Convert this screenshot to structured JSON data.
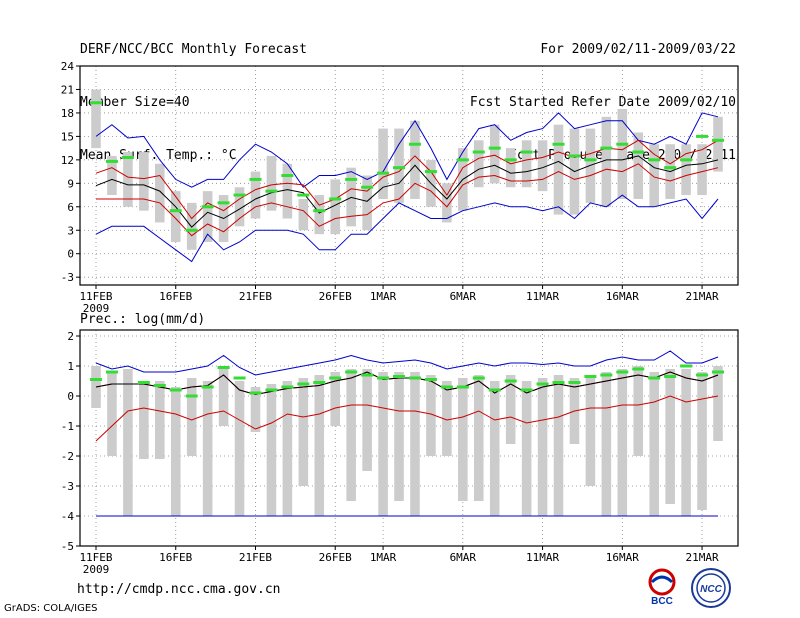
{
  "header": {
    "title": "DERF/NCC/BCC Monthly Forecast",
    "member_size": "Member Size=40",
    "variable": "Mean Surf. Temp.: °C",
    "forecast_period": "For 2009/02/11-2009/03/22",
    "started_refer": "Fcst Started Refer Date 2009/02/10",
    "produced": "Fcst Produced Date 2009/02/11"
  },
  "footer": {
    "url": "http://cmdp.ncc.cma.gov.cn",
    "credit": "GrADS: COLA/IGES",
    "logo_bcc": "BCC",
    "logo_ncc": "NCC"
  },
  "colors": {
    "ensemble_mean": "#000000",
    "spread": "#cc0000",
    "envelope": "#0000cc",
    "observation": "#33dd33",
    "box": "#cccccc",
    "grid": "#888888"
  },
  "chart_data": [
    {
      "type": "line",
      "title": "Mean Surf. Temp.: °C",
      "x_tick_labels": [
        "11FEB",
        "16FEB",
        "21FEB",
        "26FEB",
        "1MAR",
        "6MAR",
        "11MAR",
        "16MAR",
        "21MAR"
      ],
      "x_tick_days": [
        0,
        5,
        10,
        15,
        18,
        23,
        28,
        33,
        38
      ],
      "year_label": "2009",
      "ylim": [
        -4,
        24
      ],
      "yticks": [
        -3,
        0,
        3,
        6,
        9,
        12,
        15,
        18,
        21,
        24
      ],
      "days": 40,
      "series": [
        {
          "name": "ensemble mean",
          "color": "#000000",
          "values": [
            8.7,
            9.5,
            8.8,
            8.8,
            8.0,
            6.0,
            3.4,
            5.3,
            4.5,
            5.7,
            7.0,
            7.8,
            8.2,
            7.8,
            5.2,
            6.2,
            7.2,
            6.7,
            8.5,
            9.0,
            11.3,
            9.0,
            7.0,
            9.5,
            10.8,
            11.3,
            10.3,
            10.5,
            11.0,
            11.8,
            10.5,
            11.3,
            12.0,
            12.0,
            12.5,
            11.0,
            10.5,
            11.3,
            11.5,
            12.0
          ]
        },
        {
          "name": "upper spread",
          "color": "#cc0000",
          "values": [
            10.3,
            11.0,
            9.8,
            9.6,
            10.0,
            7.3,
            4.5,
            6.5,
            5.5,
            7.0,
            8.2,
            8.8,
            9.0,
            8.8,
            6.2,
            7.0,
            8.3,
            8.0,
            9.8,
            10.5,
            12.5,
            10.5,
            7.5,
            11.0,
            12.2,
            12.6,
            11.5,
            12.0,
            12.3,
            13.0,
            12.3,
            12.8,
            13.5,
            13.3,
            14.5,
            12.7,
            11.5,
            12.8,
            13.3,
            14.5
          ]
        },
        {
          "name": "lower spread",
          "color": "#cc0000",
          "values": [
            7.0,
            7.0,
            7.0,
            7.0,
            6.5,
            4.5,
            2.3,
            3.8,
            2.8,
            4.5,
            6.0,
            6.5,
            6.0,
            5.5,
            3.5,
            4.5,
            4.8,
            5.0,
            6.5,
            7.0,
            9.0,
            8.0,
            6.0,
            8.8,
            9.8,
            10.0,
            9.3,
            9.3,
            9.5,
            10.5,
            9.5,
            10.0,
            10.8,
            10.5,
            11.5,
            9.8,
            9.3,
            10.0,
            10.5,
            11.0
          ]
        },
        {
          "name": "ensemble max",
          "color": "#0000cc",
          "values": [
            15.0,
            16.5,
            14.8,
            15.0,
            12.0,
            9.5,
            8.5,
            9.5,
            9.5,
            12.0,
            14.0,
            13.0,
            11.5,
            8.5,
            10.0,
            10.0,
            10.5,
            9.5,
            10.5,
            14.0,
            17.0,
            13.5,
            9.5,
            13.0,
            16.0,
            16.5,
            14.5,
            15.5,
            16.0,
            18.0,
            16.0,
            16.5,
            17.0,
            17.0,
            14.5,
            14.0,
            15.0,
            14.0,
            18.0,
            17.5
          ]
        },
        {
          "name": "ensemble min",
          "color": "#0000cc",
          "values": [
            2.5,
            3.5,
            3.5,
            3.5,
            2.0,
            0.5,
            -1.0,
            2.5,
            0.5,
            1.5,
            3.0,
            3.0,
            3.0,
            2.5,
            0.5,
            0.5,
            2.5,
            2.5,
            4.5,
            6.5,
            5.5,
            4.5,
            4.5,
            5.5,
            6.0,
            6.5,
            6.0,
            6.0,
            5.5,
            6.0,
            4.5,
            6.5,
            6.0,
            7.5,
            6.0,
            6.0,
            6.5,
            7.0,
            4.5,
            7.0
          ]
        },
        {
          "name": "observation",
          "color": "#33dd33",
          "style": "dash",
          "values": [
            19.3,
            11.8,
            12.3,
            null,
            null,
            5.5,
            3.0,
            6.0,
            6.5,
            7.5,
            9.5,
            8.0,
            10.0,
            7.5,
            5.5,
            7.0,
            9.5,
            8.5,
            10.3,
            11.0,
            14.0,
            10.5,
            null,
            12.0,
            13.0,
            13.5,
            12.0,
            13.0,
            null,
            14.0,
            12.5,
            12.0,
            13.5,
            14.0,
            13.0,
            12.0,
            11.0,
            12.0,
            15.0,
            14.5
          ]
        },
        {
          "name": "box upper",
          "color": "#cccccc",
          "values": [
            21.0,
            12.5,
            13.0,
            13.0,
            11.5,
            8.0,
            6.5,
            8.0,
            7.5,
            8.5,
            10.5,
            12.5,
            11.5,
            7.0,
            7.5,
            9.5,
            11.0,
            10.0,
            16.0,
            16.0,
            17.0,
            12.0,
            9.0,
            13.5,
            14.5,
            16.5,
            13.5,
            14.5,
            14.5,
            16.5,
            16.0,
            16.0,
            17.5,
            18.5,
            15.5,
            14.0,
            14.0,
            14.0,
            14.0,
            17.5
          ]
        },
        {
          "name": "box lower",
          "color": "#cccccc",
          "values": [
            13.5,
            7.5,
            6.0,
            5.5,
            4.0,
            1.5,
            0.5,
            1.5,
            1.5,
            3.5,
            4.5,
            5.5,
            4.5,
            3.0,
            2.5,
            2.5,
            3.5,
            3.0,
            7.0,
            6.5,
            7.0,
            6.0,
            4.0,
            5.5,
            8.5,
            9.0,
            8.5,
            8.5,
            8.0,
            5.0,
            5.0,
            6.5,
            6.0,
            7.0,
            7.0,
            6.0,
            7.0,
            7.5,
            7.5,
            10.5
          ]
        }
      ]
    },
    {
      "type": "line",
      "title": "Prec.: log(mm/d)",
      "x_tick_labels": [
        "11FEB",
        "16FEB",
        "21FEB",
        "26FEB",
        "1MAR",
        "6MAR",
        "11MAR",
        "16MAR",
        "21MAR"
      ],
      "x_tick_days": [
        0,
        5,
        10,
        15,
        18,
        23,
        28,
        33,
        38
      ],
      "year_label": "2009",
      "ylim": [
        -5,
        2.2
      ],
      "yticks": [
        -5,
        -4,
        -3,
        -2,
        -1,
        0,
        1,
        2
      ],
      "days": 40,
      "series": [
        {
          "name": "ensemble mean",
          "color": "#000000",
          "values": [
            0.3,
            0.4,
            0.4,
            0.4,
            0.3,
            0.2,
            0.3,
            0.35,
            0.7,
            0.2,
            0.05,
            0.15,
            0.25,
            0.3,
            0.35,
            0.5,
            0.6,
            0.8,
            0.55,
            0.6,
            0.6,
            0.5,
            0.2,
            0.3,
            0.5,
            0.1,
            0.4,
            0.1,
            0.3,
            0.4,
            0.3,
            0.4,
            0.5,
            0.6,
            0.7,
            0.6,
            0.8,
            0.6,
            0.5,
            0.7
          ]
        },
        {
          "name": "upper spread",
          "color": "#cc0000",
          "values": [
            0.3,
            0.4,
            0.4,
            0.4,
            0.3,
            0.2,
            0.3,
            0.35,
            0.7,
            0.2,
            0.05,
            0.15,
            0.25,
            0.3,
            0.35,
            0.5,
            0.6,
            0.8,
            0.55,
            0.6,
            0.6,
            0.5,
            0.2,
            0.3,
            0.5,
            0.1,
            0.4,
            0.1,
            0.3,
            0.4,
            0.3,
            0.4,
            0.5,
            0.6,
            0.7,
            0.6,
            0.8,
            0.6,
            0.5,
            0.7
          ]
        },
        {
          "name": "lower spread",
          "color": "#cc0000",
          "values": [
            -1.5,
            -1.0,
            -0.5,
            -0.4,
            -0.5,
            -0.6,
            -0.8,
            -0.6,
            -0.5,
            -0.8,
            -1.1,
            -0.9,
            -0.6,
            -0.7,
            -0.6,
            -0.4,
            -0.3,
            -0.3,
            -0.4,
            -0.5,
            -0.5,
            -0.6,
            -0.8,
            -0.7,
            -0.5,
            -0.8,
            -0.7,
            -0.9,
            -0.8,
            -0.7,
            -0.5,
            -0.4,
            -0.4,
            -0.3,
            -0.3,
            -0.2,
            0.0,
            -0.2,
            -0.1,
            0.0
          ]
        },
        {
          "name": "ensemble max",
          "color": "#0000cc",
          "values": [
            1.1,
            0.9,
            1.0,
            0.8,
            0.8,
            0.8,
            0.9,
            1.0,
            1.35,
            0.95,
            0.7,
            0.8,
            0.9,
            1.0,
            1.1,
            1.2,
            1.35,
            1.2,
            1.1,
            1.15,
            1.2,
            1.1,
            0.9,
            1.0,
            1.1,
            1.0,
            1.1,
            1.1,
            1.05,
            1.1,
            1.0,
            1.0,
            1.2,
            1.3,
            1.2,
            1.2,
            1.5,
            1.1,
            1.1,
            1.3
          ]
        },
        {
          "name": "ensemble min",
          "color": "#0000cc",
          "values": [
            -4.0,
            -4.0,
            -4.0,
            -4.0,
            -4.0,
            -4.0,
            -4.0,
            -4.0,
            -4.0,
            -4.0,
            -4.0,
            -4.0,
            -4.0,
            -4.0,
            -4.0,
            -4.0,
            -4.0,
            -4.0,
            -4.0,
            -4.0,
            -4.0,
            -4.0,
            -4.0,
            -4.0,
            -4.0,
            -4.0,
            -4.0,
            -4.0,
            -4.0,
            -4.0,
            -4.0,
            -4.0,
            -4.0,
            -4.0,
            -4.0,
            -4.0,
            -4.0,
            -4.0,
            -4.0,
            -4.0
          ]
        },
        {
          "name": "observation",
          "color": "#33dd33",
          "style": "dash",
          "values": [
            0.55,
            0.8,
            null,
            0.45,
            0.35,
            0.2,
            0.0,
            0.3,
            0.95,
            0.6,
            0.1,
            0.2,
            0.3,
            0.4,
            0.45,
            0.6,
            0.8,
            0.7,
            0.6,
            0.65,
            0.6,
            0.55,
            0.3,
            0.3,
            0.6,
            0.2,
            0.5,
            0.2,
            0.4,
            0.45,
            0.45,
            0.65,
            0.7,
            0.8,
            0.9,
            0.6,
            0.65,
            1.0,
            0.7,
            0.8
          ]
        },
        {
          "name": "box upper",
          "color": "#cccccc",
          "values": [
            1.0,
            0.8,
            0.9,
            0.5,
            0.5,
            0.3,
            0.6,
            0.5,
            1.0,
            0.5,
            0.3,
            0.4,
            0.5,
            0.6,
            0.7,
            0.8,
            0.9,
            0.9,
            0.8,
            0.8,
            0.8,
            0.7,
            0.5,
            0.6,
            0.7,
            0.5,
            0.7,
            0.5,
            0.6,
            0.7,
            0.6,
            0.7,
            0.8,
            0.9,
            1.0,
            0.8,
            0.9,
            0.9,
            0.8,
            1.0
          ]
        },
        {
          "name": "box lower",
          "color": "#cccccc",
          "values": [
            -0.4,
            -2.0,
            -4.0,
            -2.1,
            -2.1,
            -4.0,
            -2.0,
            -4.0,
            -1.0,
            -4.0,
            -1.2,
            -4.0,
            -4.0,
            -3.0,
            -4.0,
            -1.0,
            -3.5,
            -2.5,
            -4.0,
            -3.5,
            -4.0,
            -2.0,
            -2.0,
            -3.5,
            -3.5,
            -4.0,
            -1.6,
            -4.0,
            -4.0,
            -4.0,
            -1.6,
            -3.0,
            -4.0,
            -4.0,
            -2.0,
            -4.0,
            -3.6,
            -4.0,
            -3.8,
            -1.5
          ]
        }
      ]
    }
  ]
}
